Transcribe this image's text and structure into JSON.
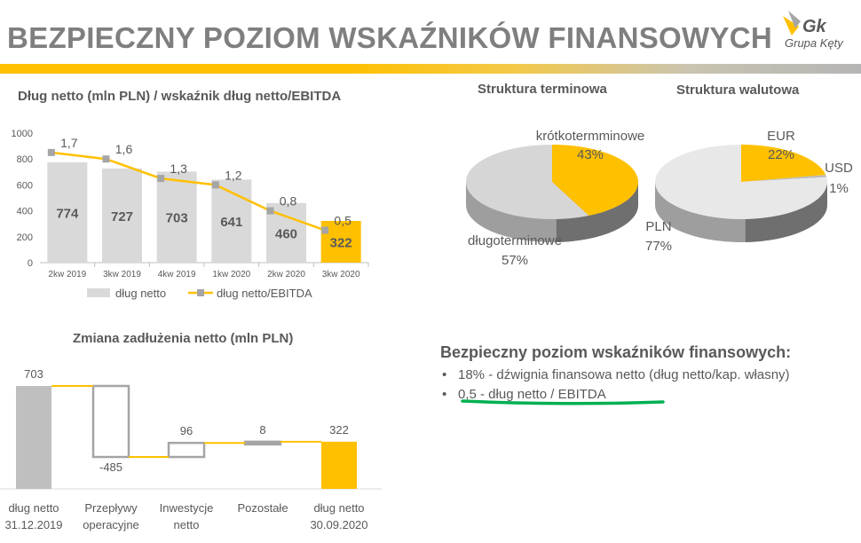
{
  "page": {
    "title": "BEZPIECZNY POZIOM WSKAŹNIKÓW FINANSOWYCH",
    "logo_text": "Gk",
    "logo_subtitle": "Grupa Kęty"
  },
  "colors": {
    "accent": "#ffc000",
    "bar_gray": "#d9d9d9",
    "marker_gray": "#a5a5a5",
    "highlight_green": "#00b050"
  },
  "chart_data": [
    {
      "type": "bar",
      "title": "Dług netto (mln PLN) / wskaźnik dług netto/EBITDA",
      "categories": [
        "2kw 2019",
        "3kw 2019",
        "4kw 2019",
        "1kw 2020",
        "2kw 2020",
        "3kw 2020"
      ],
      "ylim": [
        0,
        1000
      ],
      "yticks": [
        "0",
        "200",
        "400",
        "600",
        "800",
        "1000"
      ],
      "series": [
        {
          "name": "dług netto",
          "type": "bar",
          "values": [
            774,
            727,
            703,
            641,
            460,
            322
          ],
          "value_labels": [
            "774",
            "727",
            "703",
            "641",
            "460",
            "322"
          ]
        },
        {
          "name": "dług netto/EBITDA",
          "type": "line",
          "values": [
            1.7,
            1.6,
            1.3,
            1.2,
            0.8,
            0.5
          ],
          "value_labels": [
            "1,7",
            "1,6",
            "1,3",
            "1,2",
            "0,8",
            "0,5"
          ]
        }
      ],
      "legend_position": "bottom"
    },
    {
      "type": "pie",
      "title": "Struktura terminowa",
      "slices": [
        {
          "label": "krótkotermminowe",
          "value": 43,
          "value_label": "43%"
        },
        {
          "label": "długoterminowe",
          "value": 57,
          "value_label": "57%"
        }
      ]
    },
    {
      "type": "pie",
      "title": "Struktura walutowa",
      "slices": [
        {
          "label": "EUR",
          "value": 22,
          "value_label": "22%"
        },
        {
          "label": "USD",
          "value": 1,
          "value_label": "1%"
        },
        {
          "label": "PLN",
          "value": 77,
          "value_label": "77%"
        }
      ]
    },
    {
      "type": "bar",
      "title": "Zmiana zadłużenia netto (mln PLN)",
      "categories": [
        "dług netto 31.12.2019",
        "Przepływy operacyjne",
        "Inwestycje netto",
        "Pozostałe",
        "dług netto 30.09.2020"
      ],
      "category_lines": [
        [
          "dług netto",
          "31.12.2019"
        ],
        [
          "Przepływy",
          "operacyjne"
        ],
        [
          "Inwestycje",
          "netto"
        ],
        [
          "Pozostałe"
        ],
        [
          "dług netto",
          "30.09.2020"
        ]
      ],
      "values": [
        703,
        -485,
        96,
        8,
        322
      ],
      "value_labels": [
        "703",
        "-485",
        "96",
        "8",
        "322"
      ],
      "waterfall": true
    }
  ],
  "bullets": {
    "title": "Bezpieczny poziom wskaźników finansowych:",
    "marker": "•",
    "items": [
      "18% - dźwignia finansowa netto (dług netto/kap. własny)",
      "0,5 - dług netto / EBITDA"
    ]
  }
}
